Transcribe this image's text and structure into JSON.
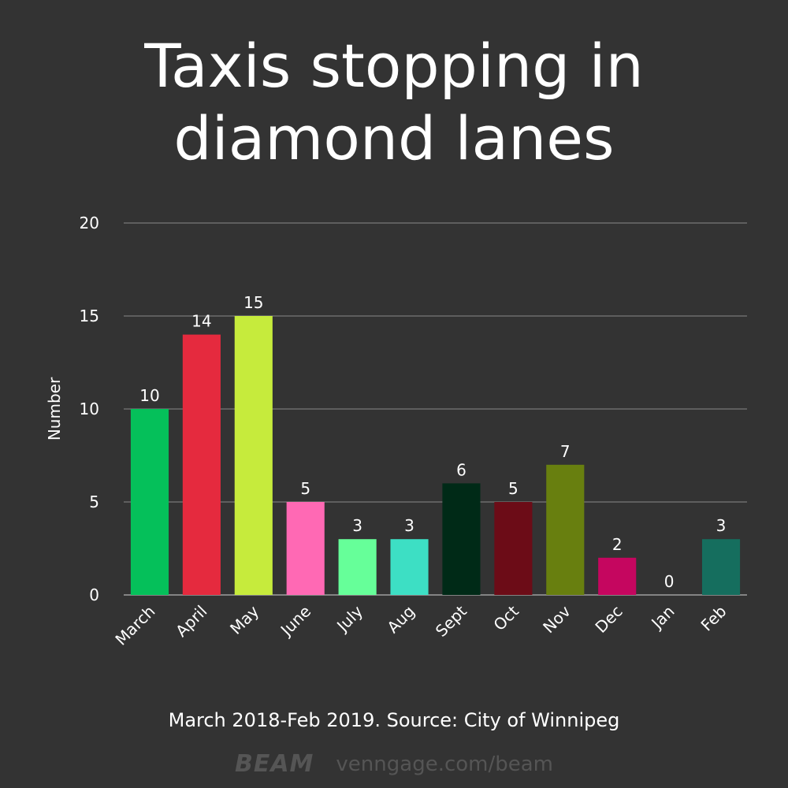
{
  "chart_data": {
    "type": "bar",
    "title_lines": [
      "Taxis stopping in",
      "diamond lanes"
    ],
    "ylabel": "Number",
    "xlabel": "",
    "ylim": [
      0,
      20
    ],
    "yticks": [
      0,
      5,
      10,
      15,
      20
    ],
    "grid": true,
    "categories": [
      "March",
      "April",
      "May",
      "June",
      "July",
      "Aug",
      "Sept",
      "Oct",
      "Nov",
      "Dec",
      "Jan",
      "Feb"
    ],
    "values": [
      10,
      14,
      15,
      5,
      3,
      3,
      6,
      5,
      7,
      2,
      0,
      3
    ],
    "data_labels": [
      "10",
      "14",
      "15",
      "5",
      "3",
      "3",
      "6",
      "5",
      "7",
      "2",
      "0",
      "3"
    ],
    "colors": [
      "#05c05a",
      "#e52a3e",
      "#c6eb3c",
      "#ff69b4",
      "#66ff99",
      "#3ddfc4",
      "#002a17",
      "#6c0c17",
      "#687f0f",
      "#c5065f",
      "#333333",
      "#156e5e"
    ]
  },
  "caption": "March 2018-Feb 2019. Source: City of Winnipeg",
  "footer": {
    "logo": "BEAM",
    "url": "venngage.com/beam"
  }
}
